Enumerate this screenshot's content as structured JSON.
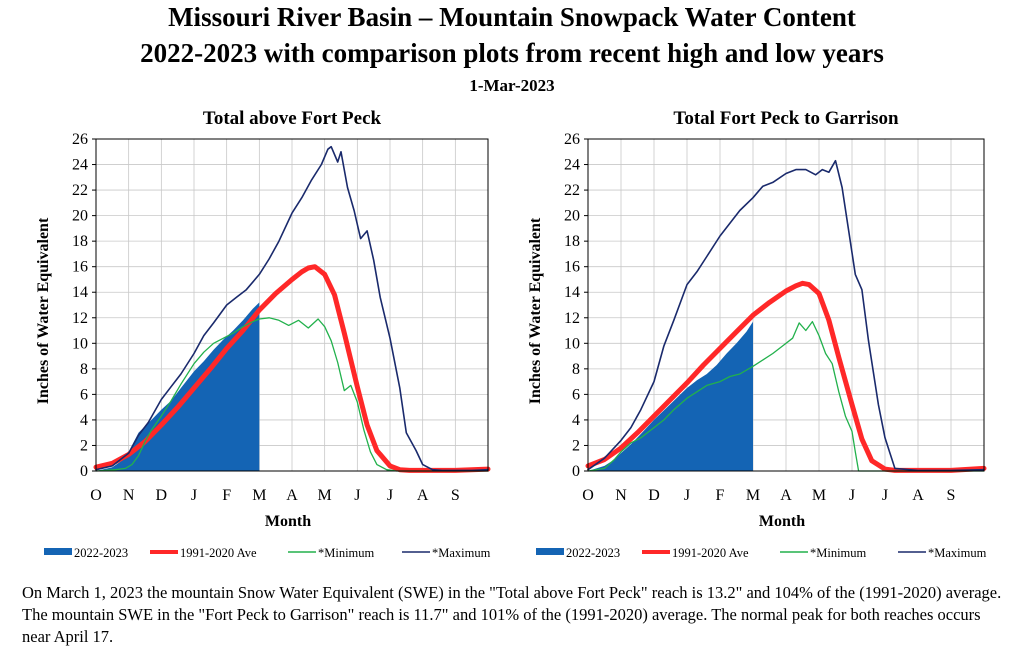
{
  "header": {
    "title": "Missouri River Basin – Mountain Snowpack Water Content",
    "subtitle": "2022-2023 with comparison plots from recent high and low years",
    "date": "1-Mar-2023"
  },
  "colors": {
    "current": "#1464b4",
    "average": "#ff2828",
    "minimum": "#22b14c",
    "maximum": "#1a2a6c"
  },
  "caption": "On March 1, 2023 the mountain Snow Water Equivalent (SWE) in the \"Total above Fort Peck\" reach is 13.2\" and 104% of the (1991-2020) average. The mountain SWE in the \"Fort Peck to Garrison\" reach is 11.7\" and 101% of the (1991-2020) average. The normal peak for both reaches occurs near April 17.",
  "chart_data": [
    {
      "type": "area",
      "title": "Total above Fort Peck",
      "xlabel": "Month",
      "ylabel": "Inches of Water Equivalent",
      "ylim": [
        0,
        26
      ],
      "yticks": [
        0,
        2,
        4,
        6,
        8,
        10,
        12,
        14,
        16,
        18,
        20,
        22,
        24,
        26
      ],
      "x_ticks": [
        "O",
        "N",
        "D",
        "J",
        "F",
        "M",
        "A",
        "M",
        "J",
        "J",
        "A",
        "S"
      ],
      "xlim": [
        0,
        12
      ],
      "grid": true,
      "series": [
        {
          "name": "2022-2023",
          "kind": "area",
          "x": [
            0,
            0.5,
            0.9,
            1.1,
            1.3,
            1.5,
            1.7,
            2.0,
            2.3,
            2.6,
            3.0,
            3.3,
            3.6,
            3.9,
            4.2,
            4.5,
            4.8,
            5.0
          ],
          "values": [
            0,
            0.3,
            1.0,
            2.0,
            3.0,
            3.5,
            4.0,
            4.8,
            5.5,
            6.5,
            7.8,
            8.6,
            9.5,
            10.3,
            11.0,
            11.8,
            12.7,
            13.2
          ]
        },
        {
          "name": "1991-2020 Ave",
          "kind": "line",
          "x": [
            0,
            0.5,
            1.0,
            1.5,
            2.0,
            2.5,
            3.0,
            3.5,
            4.0,
            4.5,
            5.0,
            5.5,
            6.0,
            6.3,
            6.5,
            6.7,
            7.0,
            7.3,
            7.6,
            8.0,
            8.3,
            8.6,
            9.0,
            9.3,
            9.6,
            10.0,
            11.0,
            12.0
          ],
          "values": [
            0.3,
            0.6,
            1.3,
            2.3,
            3.6,
            5.0,
            6.5,
            8.0,
            9.6,
            11.0,
            12.6,
            13.9,
            15.0,
            15.6,
            15.9,
            16.0,
            15.4,
            13.8,
            10.8,
            6.6,
            3.6,
            1.6,
            0.4,
            0.1,
            0.05,
            0.05,
            0.05,
            0.15
          ]
        },
        {
          "name": "*Minimum",
          "kind": "line",
          "x": [
            0,
            0.6,
            0.9,
            1.1,
            1.3,
            1.5,
            1.7,
            2.0,
            2.3,
            2.6,
            3.0,
            3.3,
            3.6,
            3.9,
            4.2,
            4.5,
            4.8,
            5.0,
            5.3,
            5.6,
            5.9,
            6.2,
            6.5,
            6.8,
            7.0,
            7.2,
            7.4,
            7.6,
            7.8,
            8.0,
            8.2,
            8.4,
            8.6,
            8.9,
            9.2,
            12.0
          ],
          "values": [
            0,
            0.1,
            0.2,
            0.5,
            1.2,
            2.3,
            3.2,
            4.3,
            5.5,
            6.8,
            8.4,
            9.3,
            10.0,
            10.4,
            10.8,
            11.3,
            11.7,
            11.9,
            12.0,
            11.8,
            11.4,
            11.8,
            11.2,
            11.9,
            11.3,
            10.2,
            8.5,
            6.3,
            6.7,
            5.4,
            3.2,
            1.5,
            0.5,
            0.1,
            0,
            0
          ]
        },
        {
          "name": "*Maximum",
          "kind": "line",
          "x": [
            0,
            0.5,
            1.0,
            1.3,
            1.6,
            2.0,
            2.3,
            2.6,
            3.0,
            3.3,
            3.6,
            4.0,
            4.3,
            4.6,
            5.0,
            5.3,
            5.6,
            6.0,
            6.3,
            6.6,
            6.9,
            7.1,
            7.2,
            7.4,
            7.5,
            7.7,
            7.9,
            8.1,
            8.3,
            8.5,
            8.7,
            9.0,
            9.3,
            9.5,
            9.8,
            10.0,
            10.3,
            10.6,
            11.0,
            11.5,
            12.0
          ],
          "values": [
            0.1,
            0.4,
            1.4,
            2.8,
            3.8,
            5.6,
            6.6,
            7.6,
            9.2,
            10.6,
            11.6,
            13.0,
            13.6,
            14.2,
            15.4,
            16.6,
            18.0,
            20.2,
            21.4,
            22.8,
            24.0,
            25.2,
            25.4,
            24.2,
            25.0,
            22.2,
            20.4,
            18.2,
            18.8,
            16.5,
            13.6,
            10.4,
            6.5,
            3.0,
            1.6,
            0.5,
            0.1,
            0.05,
            0.05,
            0.05,
            0.1
          ]
        }
      ],
      "legend": "bottom"
    },
    {
      "type": "area",
      "title": "Total Fort Peck to Garrison",
      "xlabel": "Month",
      "ylabel": "Inches of Water Equivalent",
      "ylim": [
        0,
        26
      ],
      "yticks": [
        0,
        2,
        4,
        6,
        8,
        10,
        12,
        14,
        16,
        18,
        20,
        22,
        24,
        26
      ],
      "x_ticks": [
        "O",
        "N",
        "D",
        "J",
        "F",
        "M",
        "A",
        "M",
        "J",
        "J",
        "A",
        "S"
      ],
      "xlim": [
        0,
        12
      ],
      "grid": true,
      "series": [
        {
          "name": "2022-2023",
          "kind": "area",
          "x": [
            0,
            0.5,
            0.8,
            1.0,
            1.3,
            1.6,
            2.0,
            2.4,
            2.8,
            3.0,
            3.3,
            3.6,
            3.9,
            4.2,
            4.5,
            4.8,
            5.0
          ],
          "values": [
            0,
            0.4,
            0.9,
            1.4,
            2.1,
            2.9,
            4.0,
            5.0,
            6.0,
            6.5,
            7.1,
            7.6,
            8.3,
            9.2,
            10.0,
            10.9,
            11.7
          ]
        },
        {
          "name": "1991-2020 Ave",
          "kind": "line",
          "x": [
            0,
            0.5,
            1.0,
            1.5,
            2.0,
            2.5,
            3.0,
            3.5,
            4.0,
            4.5,
            5.0,
            5.5,
            6.0,
            6.3,
            6.5,
            6.7,
            7.0,
            7.3,
            7.6,
            8.0,
            8.3,
            8.6,
            9.0,
            9.3,
            10.0,
            11.0,
            12.0
          ],
          "values": [
            0.4,
            0.9,
            1.8,
            3.0,
            4.3,
            5.6,
            6.9,
            8.3,
            9.6,
            10.9,
            12.2,
            13.2,
            14.1,
            14.5,
            14.7,
            14.6,
            13.9,
            11.8,
            8.9,
            5.2,
            2.5,
            0.8,
            0.15,
            0.05,
            0.05,
            0.05,
            0.2
          ]
        },
        {
          "name": "*Minimum",
          "kind": "line",
          "x": [
            0,
            0.5,
            0.8,
            1.0,
            1.3,
            1.6,
            2.0,
            2.3,
            2.6,
            3.0,
            3.3,
            3.6,
            4.0,
            4.3,
            4.6,
            5.0,
            5.3,
            5.6,
            5.9,
            6.2,
            6.4,
            6.6,
            6.8,
            7.0,
            7.2,
            7.4,
            7.6,
            7.8,
            8.0,
            8.1,
            8.2,
            12.0
          ],
          "values": [
            0,
            0.2,
            0.9,
            1.5,
            2.2,
            2.6,
            3.4,
            4.0,
            4.8,
            5.7,
            6.2,
            6.7,
            7.0,
            7.4,
            7.6,
            8.2,
            8.7,
            9.2,
            9.8,
            10.4,
            11.6,
            11.0,
            11.7,
            10.6,
            9.2,
            8.4,
            6.2,
            4.3,
            3.1,
            1.5,
            0,
            0
          ]
        },
        {
          "name": "*Maximum",
          "kind": "line",
          "x": [
            0,
            0.5,
            1.0,
            1.3,
            1.6,
            2.0,
            2.3,
            2.6,
            3.0,
            3.3,
            3.6,
            4.0,
            4.3,
            4.6,
            5.0,
            5.3,
            5.6,
            6.0,
            6.3,
            6.6,
            6.9,
            7.1,
            7.3,
            7.5,
            7.7,
            7.9,
            8.1,
            8.3,
            8.5,
            8.8,
            9.0,
            9.3,
            10.0,
            11.0,
            12.0
          ],
          "values": [
            0.1,
            1.0,
            2.4,
            3.4,
            4.8,
            7.0,
            9.8,
            11.8,
            14.6,
            15.6,
            16.8,
            18.4,
            19.4,
            20.4,
            21.4,
            22.3,
            22.6,
            23.3,
            23.6,
            23.6,
            23.2,
            23.6,
            23.4,
            24.3,
            22.2,
            18.8,
            15.4,
            14.2,
            10.2,
            5.2,
            2.6,
            0.2,
            0.05,
            0.05,
            0.1
          ]
        }
      ],
      "legend": "bottom"
    }
  ]
}
